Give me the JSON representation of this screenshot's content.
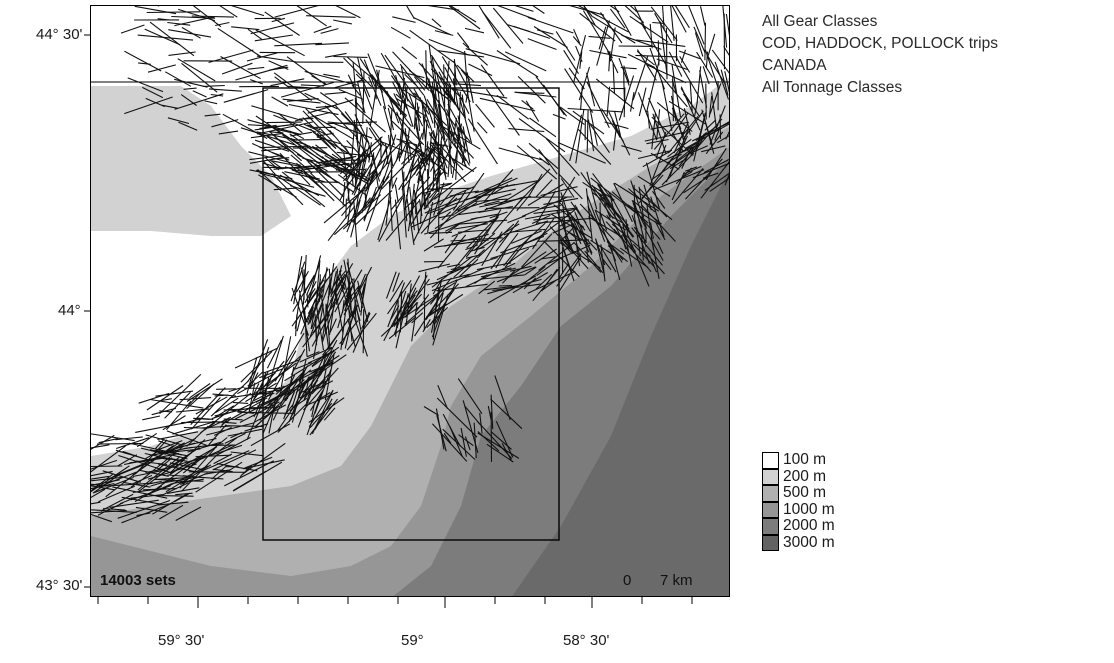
{
  "header": {
    "lines": [
      "All Gear Classes",
      "COD, HADDOCK, POLLOCK trips",
      "CANADA",
      "All Tonnage Classes"
    ]
  },
  "axes": {
    "y_ticks": [
      {
        "label": "44° 30'",
        "value": 44.5
      },
      {
        "label": "44°",
        "value": 44.0
      },
      {
        "label": "43° 30'",
        "value": 43.5
      }
    ],
    "x_ticks": [
      {
        "label": "59° 30'",
        "value": -59.5
      },
      {
        "label": "59°",
        "value": -59.0
      },
      {
        "label": "58° 30'",
        "value": -58.5
      }
    ]
  },
  "legend": {
    "items": [
      {
        "label": "100 m",
        "color": "#ffffff"
      },
      {
        "label": "200 m",
        "color": "#d2d2d2"
      },
      {
        "label": "500 m",
        "color": "#b0b0b0"
      },
      {
        "label": "1000 m",
        "color": "#969696"
      },
      {
        "label": "2000 m",
        "color": "#7c7c7c"
      },
      {
        "label": "3000 m",
        "color": "#626262"
      }
    ]
  },
  "map": {
    "sets_label": "14003 sets",
    "scale_start": "0",
    "scale_end": "7 km",
    "track_color": "#111111"
  }
}
